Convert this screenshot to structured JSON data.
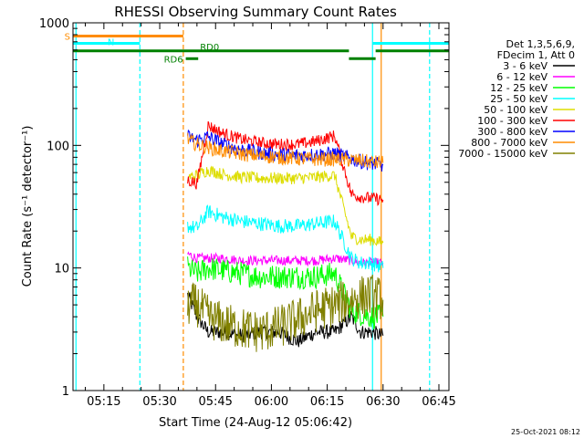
{
  "chart_data": {
    "type": "line",
    "title": "RHESSI Observing Summary Count Rates",
    "xlabel": "Start Time (24-Aug-12 05:06:42)",
    "ylabel": "Count Rate (s⁻¹ detector⁻¹)",
    "yscale": "log",
    "ylim": [
      1,
      1000
    ],
    "xlim": [
      "05:06:42",
      "06:47:42"
    ],
    "x_ticks": [
      "05:15",
      "05:30",
      "05:45",
      "06:00",
      "06:15",
      "06:30",
      "06:45"
    ],
    "y_ticks": [
      "1",
      "10",
      "100",
      "1000"
    ],
    "legend_position": "top-right",
    "legend_header": [
      "Det 1,3,5,6,9,",
      "FDecim 1, Att 0"
    ],
    "footer": "25-Oct-2021 08:12",
    "series": [
      {
        "name": "3 - 6 keV",
        "color": "#000000",
        "x": [
          "05:37:30",
          "05:40:00",
          "05:43:00",
          "05:47:00",
          "05:52:00",
          "05:57:00",
          "06:02:00",
          "06:07:00",
          "06:12:00",
          "06:17:00",
          "06:21:30",
          "06:24:00",
          "06:27:00",
          "06:30:00"
        ],
        "y": [
          6,
          4,
          3,
          3,
          2.8,
          3,
          3,
          2.5,
          3,
          3,
          4,
          3,
          3,
          2.8
        ]
      },
      {
        "name": "6 - 12 keV",
        "color": "#ff00ff",
        "x": [
          "05:37:30",
          "05:40:00",
          "05:43:00",
          "05:47:00",
          "05:52:00",
          "05:57:00",
          "06:02:00",
          "06:07:00",
          "06:12:00",
          "06:17:00",
          "06:21:30",
          "06:24:00",
          "06:27:00",
          "06:30:00"
        ],
        "y": [
          13,
          12,
          12,
          12,
          11.5,
          11.5,
          11.5,
          11.5,
          11.5,
          12,
          11.5,
          11,
          11,
          11
        ]
      },
      {
        "name": "12 - 25 keV",
        "color": "#00ff00",
        "x": [
          "05:37:30",
          "05:40:00",
          "05:43:00",
          "05:47:00",
          "05:52:00",
          "05:57:00",
          "06:02:00",
          "06:07:00",
          "06:12:00",
          "06:17:00",
          "06:21:30",
          "06:24:00",
          "06:27:00",
          "06:30:00"
        ],
        "y": [
          10,
          9,
          10,
          9.5,
          9,
          8.5,
          8.5,
          8.5,
          8.5,
          9,
          4.5,
          4.2,
          4,
          4
        ]
      },
      {
        "name": "25 - 50 keV",
        "color": "#00ffff",
        "x": [
          "05:37:30",
          "05:40:00",
          "05:43:00",
          "05:47:00",
          "05:52:00",
          "05:57:00",
          "06:02:00",
          "06:07:00",
          "06:12:00",
          "06:17:00",
          "06:21:30",
          "06:24:00",
          "06:27:00",
          "06:30:00"
        ],
        "y": [
          22,
          21,
          29,
          26,
          24,
          23,
          22,
          22,
          23,
          24,
          12,
          11,
          11,
          10
        ]
      },
      {
        "name": "50 - 100 keV",
        "color": "#dddd00",
        "x": [
          "05:37:30",
          "05:40:00",
          "05:43:00",
          "05:47:00",
          "05:52:00",
          "05:57:00",
          "06:02:00",
          "06:07:00",
          "06:12:00",
          "06:17:00",
          "06:21:30",
          "06:24:00",
          "06:27:00",
          "06:30:00"
        ],
        "y": [
          55,
          57,
          63,
          58,
          55,
          54,
          54,
          54,
          55,
          57,
          18,
          17,
          17,
          16
        ]
      },
      {
        "name": "100 - 300 keV",
        "color": "#ff0000",
        "x": [
          "05:37:30",
          "05:40:00",
          "05:43:00",
          "05:47:00",
          "05:52:00",
          "05:57:00",
          "06:02:00",
          "06:07:00",
          "06:12:00",
          "06:17:00",
          "06:21:30",
          "06:24:00",
          "06:27:00",
          "06:30:00"
        ],
        "y": [
          52,
          49,
          145,
          125,
          112,
          105,
          102,
          102,
          108,
          120,
          40,
          38,
          37,
          36
        ]
      },
      {
        "name": "300 - 800 keV",
        "color": "#0000ff",
        "x": [
          "05:37:30",
          "05:40:00",
          "05:43:00",
          "05:47:00",
          "05:52:00",
          "05:57:00",
          "06:02:00",
          "06:07:00",
          "06:12:00",
          "06:17:00",
          "06:21:30",
          "06:24:00",
          "06:27:00",
          "06:30:00"
        ],
        "y": [
          118,
          110,
          118,
          102,
          92,
          87,
          84,
          83,
          84,
          86,
          78,
          74,
          71,
          69
        ]
      },
      {
        "name": "800 - 7000 keV",
        "color": "#ff8c00",
        "x": [
          "05:37:30",
          "05:40:00",
          "05:43:00",
          "05:47:00",
          "05:52:00",
          "05:57:00",
          "06:02:00",
          "06:07:00",
          "06:12:00",
          "06:17:00",
          "06:21:30",
          "06:24:00",
          "06:27:00",
          "06:30:00"
        ],
        "y": [
          112,
          102,
          96,
          90,
          85,
          82,
          80,
          78,
          77,
          77,
          76,
          75,
          73,
          72
        ]
      },
      {
        "name": "7000 - 15000 keV",
        "color": "#808000",
        "x": [
          "05:37:30",
          "05:40:00",
          "05:43:00",
          "05:47:00",
          "05:52:00",
          "05:57:00",
          "06:02:00",
          "06:07:00",
          "06:12:00",
          "06:17:00",
          "06:21:30",
          "06:24:00",
          "06:27:00",
          "06:30:00"
        ],
        "y": [
          5,
          5,
          4,
          3.5,
          3.2,
          3,
          3.3,
          3.8,
          4.5,
          5,
          5.5,
          5.8,
          6,
          5.5
        ]
      }
    ],
    "annotations": {
      "state_bars": [
        {
          "label": "S",
          "color": "#ff8c00",
          "level": 780,
          "segments": [
            [
              "05:06:42",
              "05:36:20"
            ]
          ]
        },
        {
          "label": "N",
          "color": "#00ffff",
          "level": 680,
          "segments": [
            [
              "05:06:42",
              "05:24:40"
            ],
            [
              "06:27:10",
              "06:47:42"
            ]
          ]
        },
        {
          "label": "RD0",
          "color": "#008000",
          "level": 590,
          "segments": [
            [
              "05:06:42",
              "06:20:50"
            ],
            [
              "06:28:00",
              "06:47:42"
            ]
          ]
        },
        {
          "label": "RD6",
          "color": "#008000",
          "level": 510,
          "segments": [
            [
              "05:37:00",
              "05:40:20"
            ],
            [
              "06:20:50",
              "06:28:00"
            ]
          ]
        }
      ],
      "vlines": [
        {
          "x": "05:07:30",
          "color": "#00ffff",
          "dash": false
        },
        {
          "x": "05:24:40",
          "color": "#00ffff",
          "dash": true
        },
        {
          "x": "05:36:20",
          "color": "#ff8c00",
          "dash": true
        },
        {
          "x": "06:27:10",
          "color": "#00ffff",
          "dash": false
        },
        {
          "x": "06:29:30",
          "color": "#ff8c00",
          "dash": false
        },
        {
          "x": "06:42:30",
          "color": "#00ffff",
          "dash": true
        }
      ]
    }
  }
}
